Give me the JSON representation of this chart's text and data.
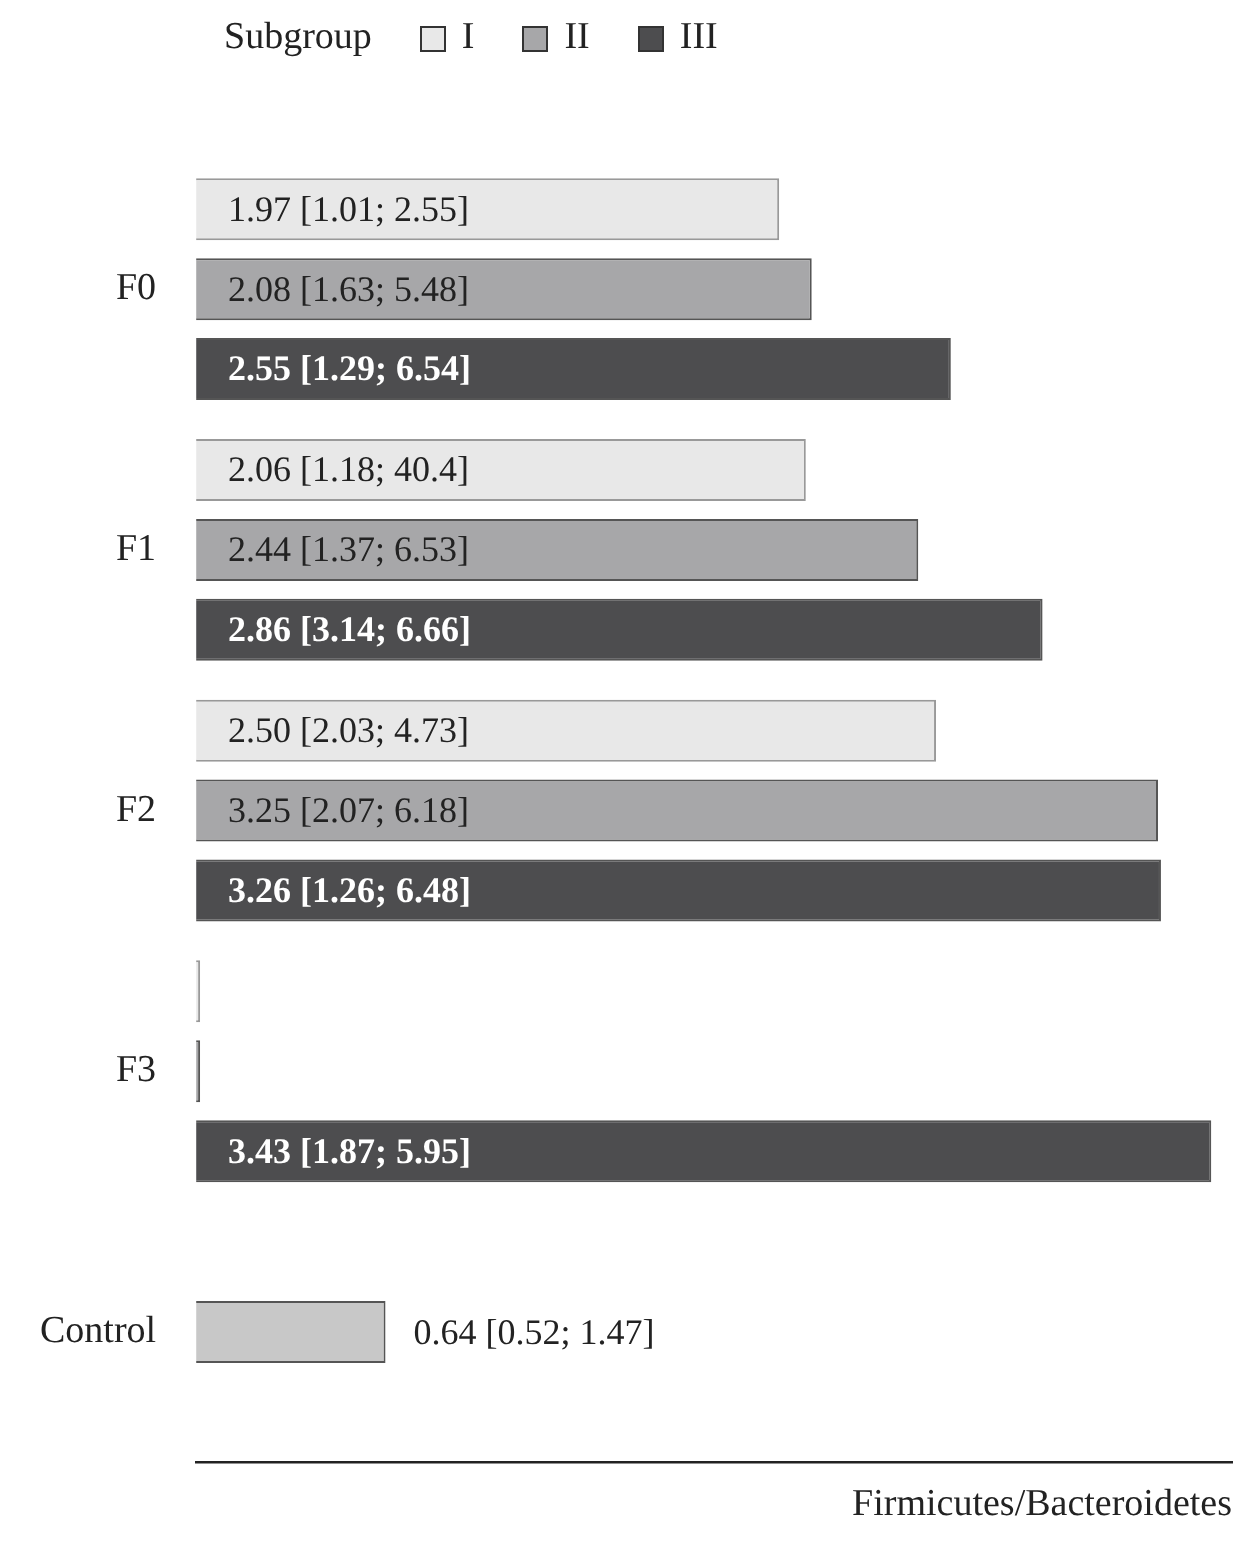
{
  "chart_data": {
    "type": "bar",
    "orientation": "horizontal",
    "xlabel": "Firmicutes/Bacteroidetes",
    "legend_title": "Subgroup",
    "legend": "top",
    "tick_labels": "y",
    "grid": false,
    "categories": [
      "F0",
      "F1",
      "F2",
      "F3",
      "Control"
    ],
    "series": [
      {
        "name": "I",
        "color": "#e8e8e8",
        "values": [
          1.97,
          2.06,
          2.5,
          0,
          null
        ],
        "value_labels": [
          "1.97 [1.01; 2.55]",
          "2.06 [1.18; 40.4]",
          "2.50 [2.03; 4.73]",
          null,
          null
        ]
      },
      {
        "name": "II",
        "color": "#a7a7a9",
        "values": [
          2.08,
          2.44,
          3.25,
          0,
          null
        ],
        "value_labels": [
          "2.08 [1.63; 5.48]",
          "2.44 [1.37; 6.53]",
          "3.25 [2.07; 6.18]",
          null,
          null
        ]
      },
      {
        "name": "III",
        "color": "#4d4d4f",
        "values": [
          2.55,
          2.86,
          3.26,
          3.43,
          null
        ],
        "value_labels": [
          "2.55 [1.29; 6.54]",
          "2.86 [3.14; 6.66]",
          "3.26 [1.26; 6.48]",
          "3.43 [1.87; 5.95]",
          null
        ]
      },
      {
        "color": "#c8c8c8",
        "values": [
          null,
          null,
          null,
          null,
          0.64
        ],
        "value_labels": [
          null,
          null,
          null,
          null,
          "0.64 [0.52; 1.47]"
        ]
      }
    ]
  }
}
